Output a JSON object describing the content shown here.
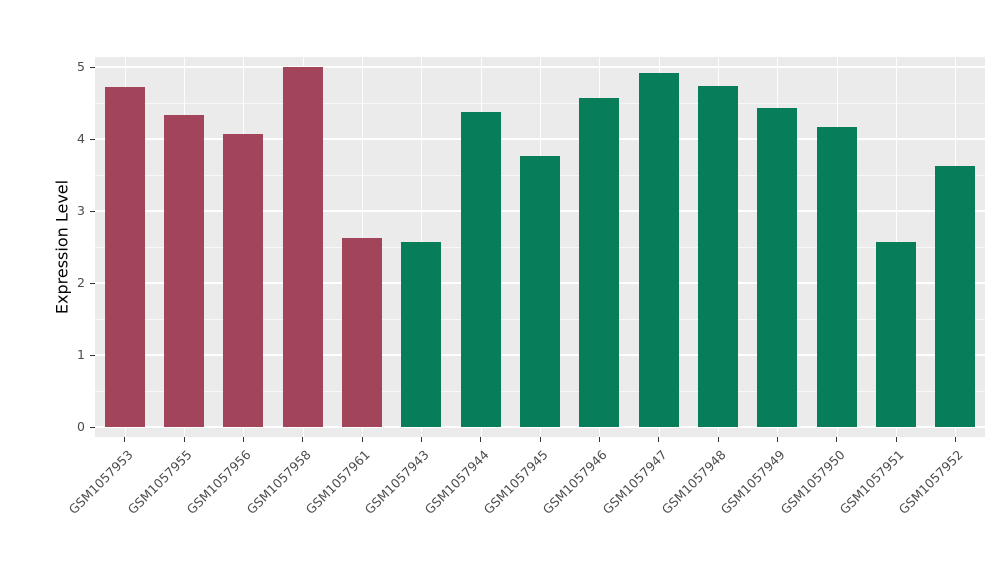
{
  "chart_data": {
    "type": "bar",
    "title": "",
    "xlabel": "",
    "ylabel": "Expression Level",
    "categories": [
      "GSM1057953",
      "GSM1057955",
      "GSM1057956",
      "GSM1057958",
      "GSM1057961",
      "GSM1057943",
      "GSM1057944",
      "GSM1057945",
      "GSM1057946",
      "GSM1057947",
      "GSM1057948",
      "GSM1057949",
      "GSM1057950",
      "GSM1057951",
      "GSM1057952"
    ],
    "values": [
      4.72,
      4.33,
      4.07,
      5.0,
      2.62,
      2.57,
      4.37,
      3.77,
      4.57,
      4.92,
      4.73,
      4.43,
      4.17,
      2.57,
      3.62
    ],
    "group_of_bar": [
      "groupA",
      "groupA",
      "groupA",
      "groupA",
      "groupA",
      "groupB",
      "groupB",
      "groupB",
      "groupB",
      "groupB",
      "groupB",
      "groupB",
      "groupB",
      "groupB",
      "groupB"
    ],
    "group_colors": {
      "groupA": "#A3455A",
      "groupB": "#077D5A"
    },
    "ylim": [
      0,
      5
    ],
    "yticks": [
      0,
      1,
      2,
      3,
      4,
      5
    ],
    "yticks_minor": [
      0.5,
      1.5,
      2.5,
      3.5,
      4.5
    ],
    "grid": "on",
    "legend": "none",
    "panel_background": "#EBEBEB",
    "grid_color": "#FFFFFF",
    "tick_text_color": "#4D4D4D"
  },
  "layout_note": ""
}
